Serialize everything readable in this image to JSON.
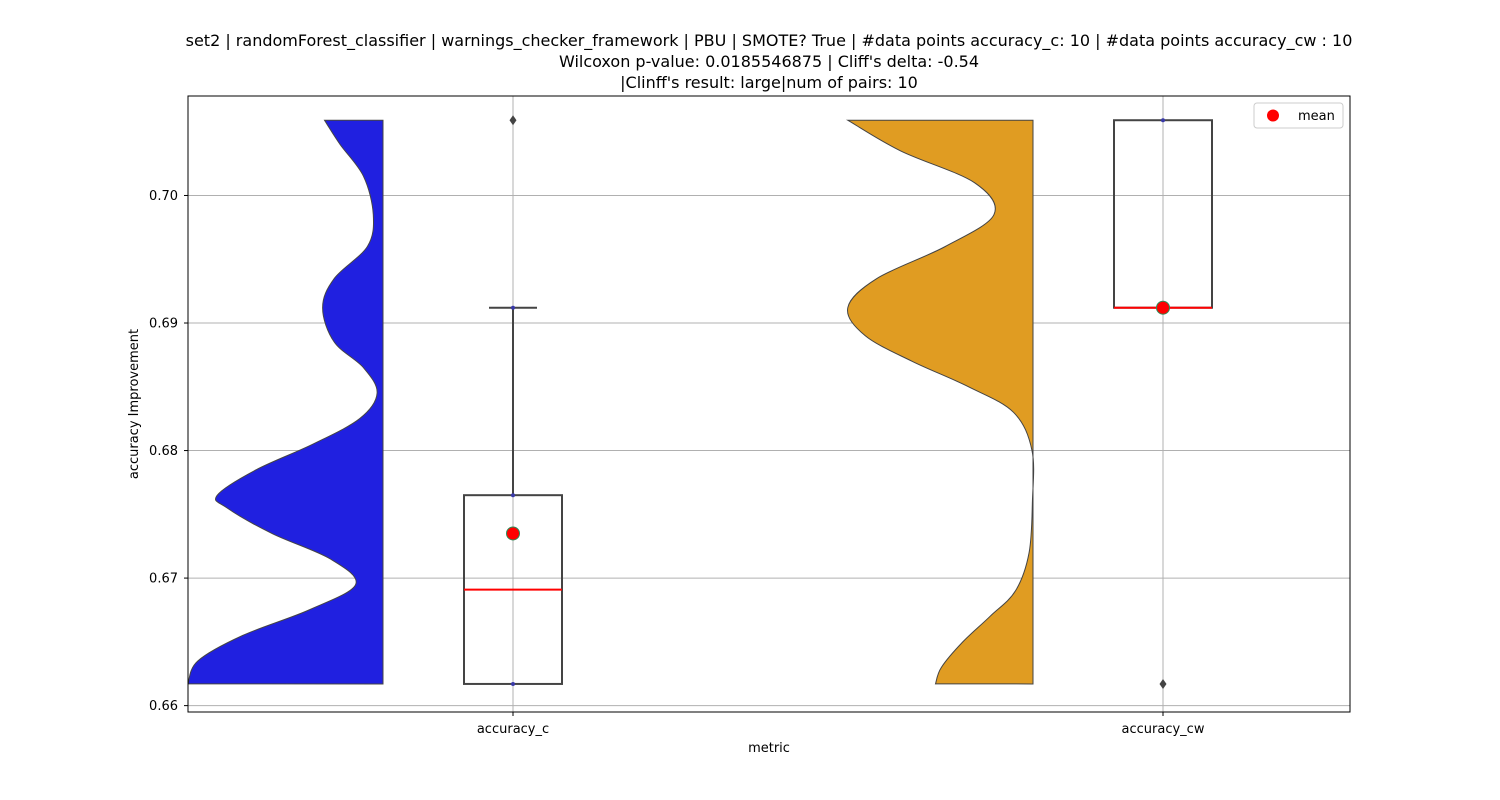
{
  "chart_data": {
    "type": "violin+box",
    "title_lines": [
      "set2 | randomForest_classifier | warnings_checker_framework | PBU | SMOTE? True | #data points accuracy_c: 10 | #data points accuracy_cw : 10",
      "Wilcoxon p-value: 0.0185546875 | Cliff's delta: -0.54",
      "|Clinff's result: large|num of pairs: 10"
    ],
    "xlabel": "metric",
    "ylabel": "accuracy Improvement",
    "ylim": [
      0.6595,
      0.7078
    ],
    "yticks": [
      0.66,
      0.67,
      0.68,
      0.69,
      0.7
    ],
    "ytick_labels": [
      "0.66",
      "0.67",
      "0.68",
      "0.69",
      "0.70"
    ],
    "grid": true,
    "legend": {
      "placement": "top-right",
      "entries": [
        {
          "label": "mean",
          "color": "#ff0000",
          "marker": "circle"
        }
      ]
    },
    "categories": [
      "accuracy_c",
      "accuracy_cw"
    ],
    "series": [
      {
        "category": "accuracy_c",
        "violin_side": "left",
        "violin_color": "#2020e0",
        "violin_range": [
          0.6617,
          0.7059
        ],
        "density": [
          [
            0.6617,
            1.0
          ],
          [
            0.6635,
            0.95
          ],
          [
            0.6655,
            0.72
          ],
          [
            0.6675,
            0.38
          ],
          [
            0.6695,
            0.14
          ],
          [
            0.6715,
            0.27
          ],
          [
            0.6735,
            0.57
          ],
          [
            0.6755,
            0.8
          ],
          [
            0.6765,
            0.85
          ],
          [
            0.6785,
            0.65
          ],
          [
            0.6805,
            0.36
          ],
          [
            0.6825,
            0.12
          ],
          [
            0.6845,
            0.03
          ],
          [
            0.6865,
            0.1
          ],
          [
            0.6885,
            0.25
          ],
          [
            0.6912,
            0.31
          ],
          [
            0.6935,
            0.25
          ],
          [
            0.696,
            0.08
          ],
          [
            0.6985,
            0.05
          ],
          [
            0.7015,
            0.1
          ],
          [
            0.704,
            0.22
          ],
          [
            0.7059,
            0.3
          ]
        ],
        "box": {
          "min": 0.6617,
          "q1": 0.6617,
          "median": 0.6691,
          "q3": 0.6765,
          "whisker_low": 0.6617,
          "whisker_high": 0.6912
        },
        "mean": 0.6735,
        "outliers": [
          0.7059
        ],
        "points": [
          0.6617,
          0.6765,
          0.6912
        ]
      },
      {
        "category": "accuracy_cw",
        "violin_side": "left",
        "violin_color": "#e09c22",
        "violin_range": [
          0.6617,
          0.7059
        ],
        "density": [
          [
            0.6617,
            0.5
          ],
          [
            0.663,
            0.47
          ],
          [
            0.665,
            0.36
          ],
          [
            0.667,
            0.22
          ],
          [
            0.669,
            0.09
          ],
          [
            0.672,
            0.02
          ],
          [
            0.676,
            0.003
          ],
          [
            0.68,
            0.005
          ],
          [
            0.683,
            0.1
          ],
          [
            0.685,
            0.33
          ],
          [
            0.687,
            0.62
          ],
          [
            0.689,
            0.86
          ],
          [
            0.6912,
            0.95
          ],
          [
            0.6935,
            0.8
          ],
          [
            0.696,
            0.45
          ],
          [
            0.6985,
            0.2
          ],
          [
            0.701,
            0.3
          ],
          [
            0.7035,
            0.68
          ],
          [
            0.7059,
            0.95
          ]
        ],
        "box": {
          "min": 0.6912,
          "q1": 0.6912,
          "median": 0.6912,
          "q3": 0.7059,
          "whisker_low": 0.6912,
          "whisker_high": 0.7059
        },
        "mean": 0.6912,
        "outliers": [
          0.6617
        ],
        "points": [
          0.7059
        ]
      }
    ],
    "box_median_color": "#ff0000",
    "box_edge_color": "#444444",
    "mean_color": "#ff0000",
    "mean_edge_color": "#2e8b57",
    "outlier_color": "#444444"
  }
}
